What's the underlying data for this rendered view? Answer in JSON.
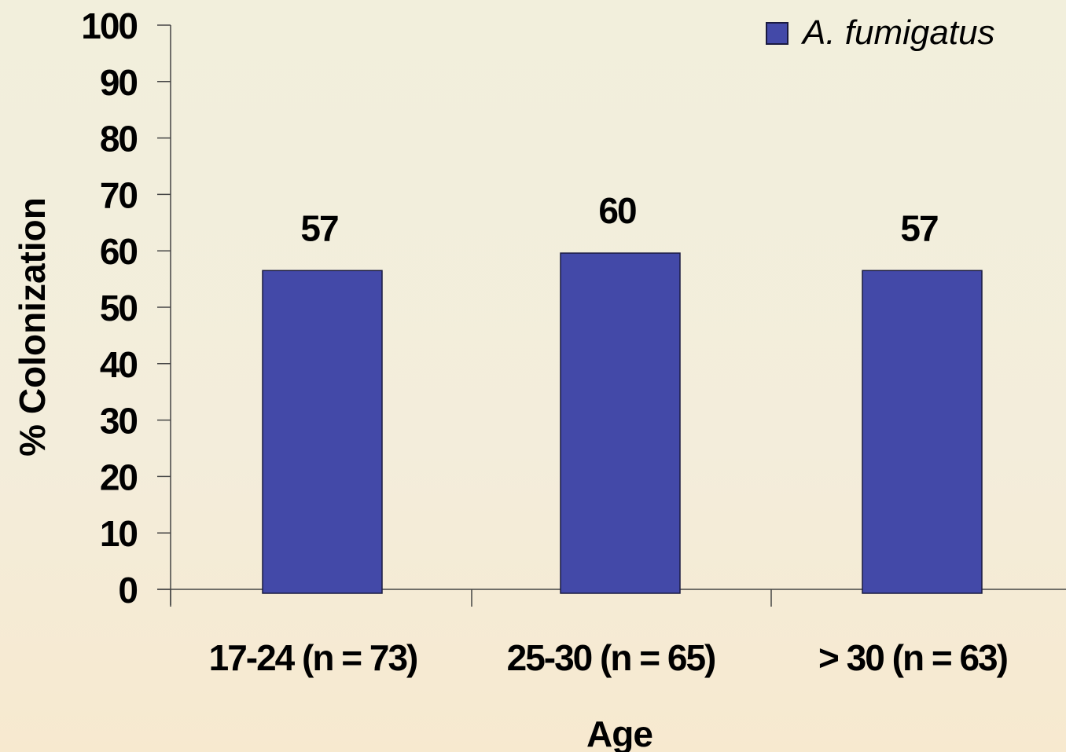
{
  "chart_data": {
    "type": "bar",
    "categories": [
      "17-24 (n = 73)",
      "25-30 (n = 65)",
      "> 30 (n = 63)"
    ],
    "series": [
      {
        "name": "A. fumigatus",
        "values": [
          56.5,
          59.6,
          56.5
        ],
        "color": "#4349a8"
      }
    ],
    "data_labels": [
      "57",
      "60",
      "57"
    ],
    "xlabel": "Age",
    "ylabel": "% Colonization",
    "ylim": [
      0,
      100
    ],
    "yticks": [
      "0",
      "10",
      "20",
      "30",
      "40",
      "50",
      "60",
      "70",
      "80",
      "90",
      "100"
    ],
    "grid": false,
    "legend": {
      "position": "top-right",
      "entries": [
        "A. fumigatus"
      ]
    }
  }
}
